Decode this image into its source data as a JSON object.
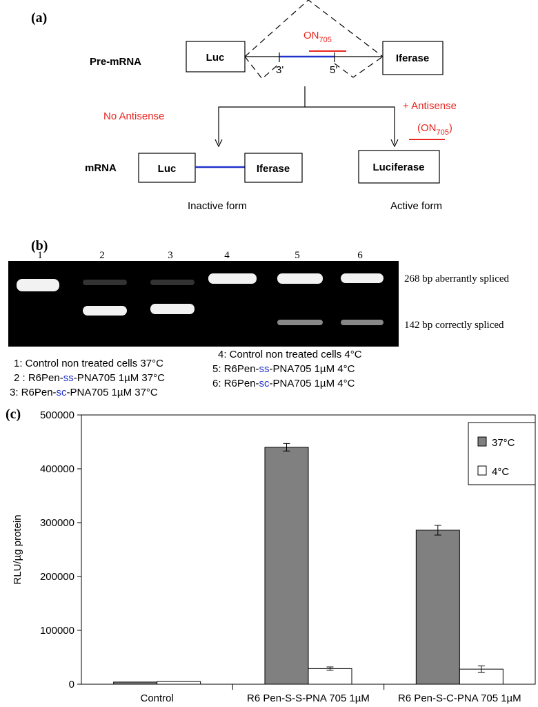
{
  "panel_a": {
    "label": "(a)",
    "pre_mrna": "Pre-mRNA",
    "pre_left": "Luc",
    "pre_right": "Iferase",
    "on_main": "ON",
    "on_sub": "705",
    "three_prime": "3'",
    "five_prime": "5'",
    "no_antisense": "No Antisense",
    "plus_antisense": "+ Antisense",
    "on2_open": "(ON",
    "on2_sub": "705",
    "on2_close": ")",
    "mrna": "mRNA",
    "mrna_left": "Luc",
    "mrna_right": "Iferase",
    "luciferase": "Luciferase",
    "inactive": "Inactive form",
    "active": "Active form"
  },
  "panel_b": {
    "label": "(b)",
    "lanes": [
      "1",
      "2",
      "3",
      "4",
      "5",
      "6"
    ],
    "band_upper": "268 bp aberrantly spliced",
    "band_lower": "142 bp correctly spliced",
    "legend": [
      [
        "1:  Control non treated cells  37°C"
      ],
      [
        "2 : R6Pen-",
        "ss",
        "-PNA705  1µM 37°C"
      ],
      [
        "3: R6Pen-",
        "sc",
        "-PNA705 1µM   37°C"
      ],
      [
        "4:  Control non treated cells 4°C"
      ],
      [
        "5: R6Pen-",
        "ss",
        "-PNA705 1µM  4°C"
      ],
      [
        "6: R6Pen-",
        "sc",
        "-PNA705 1µM  4°C"
      ]
    ]
  },
  "chart_data": {
    "type": "bar",
    "panel_label": "(c)",
    "y_label": "RLU/µg protein",
    "categories": [
      "Control",
      "R6 Pen-S-S-PNA 705 1µM",
      "R6 Pen-S-C-PNA 705 1µM"
    ],
    "series": [
      {
        "name": "37°C",
        "color": "#808080",
        "values": [
          4000,
          440000,
          286000
        ],
        "errors": [
          null,
          7000,
          9000
        ]
      },
      {
        "name": "4°C",
        "color": "#ffffff",
        "values": [
          5000,
          29000,
          28000
        ],
        "errors": [
          null,
          3000,
          6000
        ]
      }
    ],
    "ylim": [
      0,
      500000
    ],
    "yticks": [
      0,
      100000,
      200000,
      300000,
      400000,
      500000
    ],
    "grid": false,
    "legend": "top-right"
  }
}
